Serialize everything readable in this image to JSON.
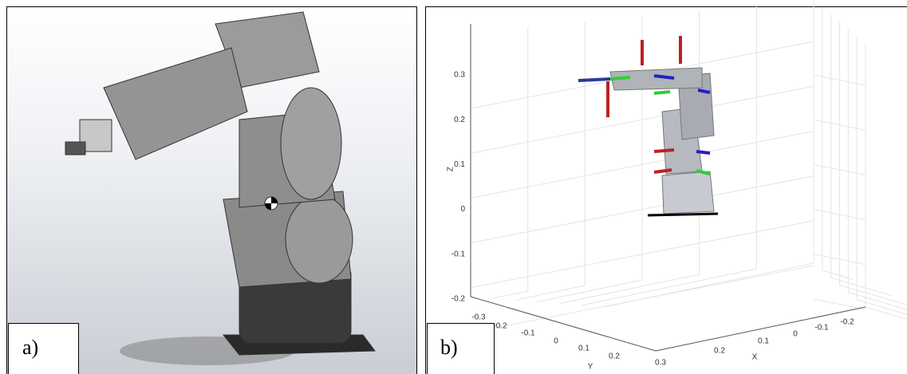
{
  "panels": [
    {
      "label": "a)"
    },
    {
      "label": "b)",
      "plot": {
        "z_label": "Z",
        "y_label": "Y",
        "x_label": "X",
        "z_ticks": [
          0.3,
          0.2,
          0.1,
          0,
          -0.1,
          -0.2
        ],
        "y_ticks": [
          -0.3,
          -0.2,
          -0.1,
          0,
          0.1,
          0.2
        ],
        "x_ticks": [
          0.3,
          0.2,
          0.1,
          0,
          -0.1,
          -0.2
        ]
      }
    }
  ]
}
